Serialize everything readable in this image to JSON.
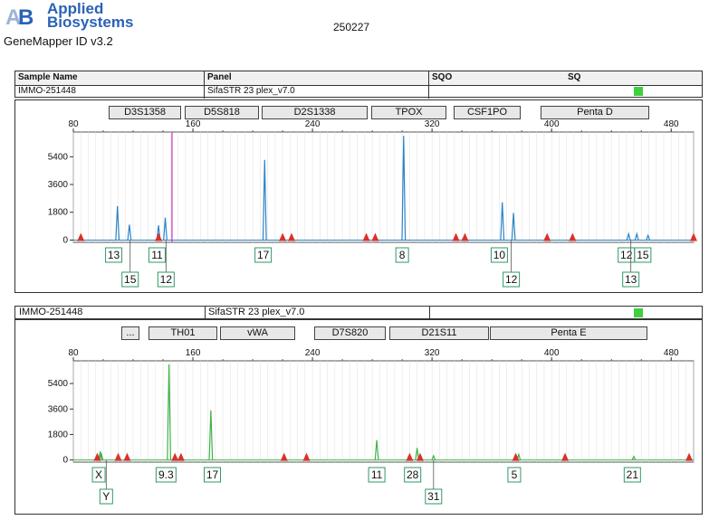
{
  "header": {
    "brand_line1": "Applied",
    "brand_line2": "Biosystems",
    "app_name": "GeneMapper ID v3.2",
    "run_id": "250227"
  },
  "table": {
    "col_sample_name": "Sample Name",
    "col_panel": "Panel",
    "col_sqo": "SQO",
    "col_sq": "SQ",
    "sample_name": "IMMO-251448",
    "panel": "SifaSTR 23 plex_v7.0",
    "sq_color": "#3fcf3f"
  },
  "panel2_bar": {
    "sample_name": "IMMO-251448",
    "panel": "SifaSTR 23 plex_v7.0",
    "ellipsis": "..."
  },
  "colors": {
    "blue": "#2b83c6",
    "green": "#3fb24a",
    "red_marker": "#d9322a",
    "magenta": "#d12fb8"
  },
  "chart_data": [
    {
      "type": "line",
      "title": "",
      "x_ticks": [
        80,
        160,
        240,
        320,
        400,
        480
      ],
      "y_ticks": [
        0,
        1800,
        3600,
        5400
      ],
      "xlim": [
        80,
        495
      ],
      "ylim": [
        -150,
        7000
      ],
      "grid": true,
      "markers": [
        "D3S1358",
        "D5S818",
        "D2S1338",
        "TPOX",
        "CSF1PO",
        "Penta D"
      ],
      "series": [
        {
          "color": "#2b83c6",
          "peaks": [
            {
              "x": 109.5,
              "y": 2200
            },
            {
              "x": 117.5,
              "y": 1000
            },
            {
              "x": 137,
              "y": 950
            },
            {
              "x": 141.5,
              "y": 1450
            },
            {
              "x": 208,
              "y": 5200
            },
            {
              "x": 301,
              "y": 6750
            },
            {
              "x": 367,
              "y": 2450
            },
            {
              "x": 374.5,
              "y": 1750
            },
            {
              "x": 451.5,
              "y": 400
            },
            {
              "x": 457,
              "y": 400
            },
            {
              "x": 464.5,
              "y": 300
            }
          ]
        }
      ],
      "magenta_line_x": 146,
      "red_markers_x": [
        85,
        137,
        220,
        226,
        276,
        282,
        336,
        342,
        397,
        414,
        495
      ],
      "allele_labels": [
        {
          "text": "13",
          "x": 107,
          "row": 1
        },
        {
          "text": "15",
          "x": 118,
          "row": 2
        },
        {
          "text": "11",
          "x": 136,
          "row": 1
        },
        {
          "text": "12",
          "x": 142,
          "row": 2
        },
        {
          "text": "17",
          "x": 207,
          "row": 1
        },
        {
          "text": "8",
          "x": 300,
          "row": 1
        },
        {
          "text": "10",
          "x": 365,
          "row": 1
        },
        {
          "text": "12",
          "x": 373,
          "row": 2
        },
        {
          "text": "12",
          "x": 450,
          "row": 1
        },
        {
          "text": "15",
          "x": 461,
          "row": 1
        },
        {
          "text": "13",
          "x": 453,
          "row": 2
        }
      ]
    },
    {
      "type": "line",
      "title": "",
      "x_ticks": [
        80,
        160,
        240,
        320,
        400,
        480
      ],
      "y_ticks": [
        0,
        1800,
        3600,
        5400
      ],
      "xlim": [
        80,
        495
      ],
      "ylim": [
        -150,
        7000
      ],
      "grid": true,
      "markers": [
        "TH01",
        "vWA",
        "D7S820",
        "D21S11",
        "Penta E"
      ],
      "series": [
        {
          "color": "#3fb24a",
          "peaks": [
            {
              "x": 98,
              "y": 600
            },
            {
              "x": 98.6,
              "y": 500
            },
            {
              "x": 144,
              "y": 6750
            },
            {
              "x": 172,
              "y": 3500
            },
            {
              "x": 283,
              "y": 1400
            },
            {
              "x": 310,
              "y": 850
            },
            {
              "x": 321,
              "y": 300
            },
            {
              "x": 378,
              "y": 400
            },
            {
              "x": 455,
              "y": 250
            }
          ]
        }
      ],
      "red_markers_x": [
        96,
        110,
        116,
        148,
        152,
        221,
        236,
        305,
        312,
        376,
        409,
        492
      ],
      "allele_labels": [
        {
          "text": "X",
          "x": 97,
          "row": 1
        },
        {
          "text": "Y",
          "x": 102,
          "row": 2
        },
        {
          "text": "9.3",
          "x": 142,
          "row": 1
        },
        {
          "text": "17",
          "x": 173,
          "row": 1
        },
        {
          "text": "11",
          "x": 283,
          "row": 1
        },
        {
          "text": "28",
          "x": 307,
          "row": 1
        },
        {
          "text": "31",
          "x": 321,
          "row": 2
        },
        {
          "text": "5",
          "x": 375,
          "row": 1
        },
        {
          "text": "21",
          "x": 454,
          "row": 1
        }
      ]
    }
  ]
}
